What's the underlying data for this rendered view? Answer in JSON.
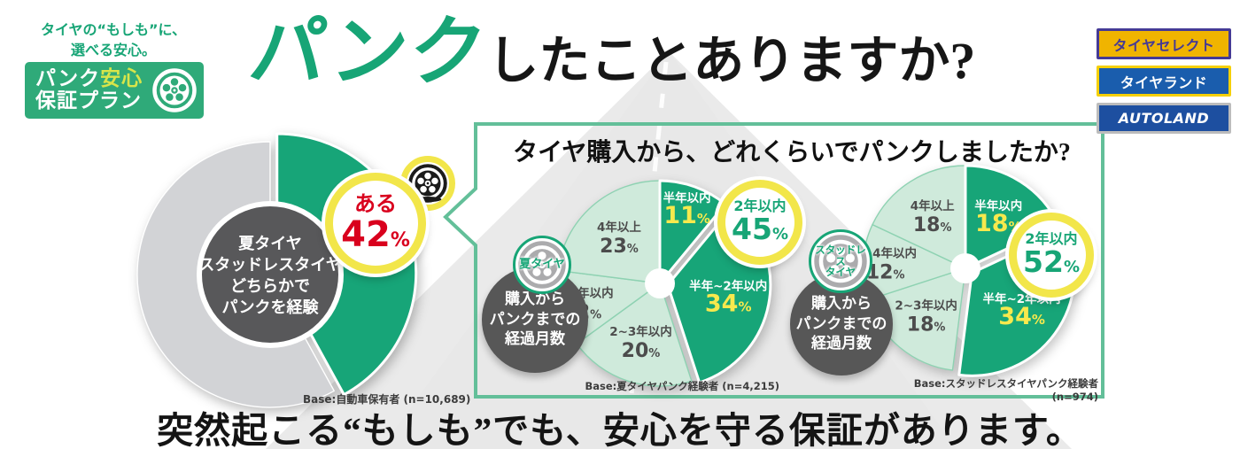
{
  "header": {
    "tagline": "タイヤの“もしも”に、\n選べる安心。",
    "logo": {
      "line1_white": "パンク",
      "line1_yellow": "安心",
      "line2": "保証プラン"
    },
    "title_accent": "パンク",
    "title_rest": "したことありますか?"
  },
  "brands": [
    {
      "name": "タイヤセレクト",
      "bg": "#f0b400",
      "text_color": "#453a96",
      "border_color": "#453a96",
      "italic": false
    },
    {
      "name": "タイヤランド",
      "bg": "#1a5dad",
      "text_color": "#ffffff",
      "border_color": "#f5d000",
      "italic": false
    },
    {
      "name": "AUTOLAND",
      "bg": "#1d4fa0",
      "text_color": "#ffffff",
      "border_color": "#bcbcbc",
      "italic": true
    }
  ],
  "question_box": {
    "title": "タイヤ購入から、どれくらいでパンクしましたか?"
  },
  "colors": {
    "accent_green": "#17a576",
    "light_green": "#cfeadb",
    "gray_ring": "#d2d3d6",
    "dark_circle": "#575757",
    "callout_yellow": "#f2e64a",
    "red": "#d9001d"
  },
  "chart_data": [
    {
      "type": "pie",
      "name": "puncture-experience-donut",
      "slices": [
        {
          "label": "ある",
          "value": 42,
          "color": "#17a578",
          "dark": true,
          "exploded": true
        },
        {
          "label": "",
          "value": 58,
          "color": "#d2d3d6"
        }
      ],
      "center_label": "夏タイヤ\nスタッドレスタイヤ\nどちらかで\nパンクを経験",
      "callout": {
        "label": "ある",
        "value": "42",
        "unit": "%"
      },
      "base_note": "Base:自動車保有者 (n=10,689)"
    },
    {
      "type": "pie",
      "name": "months-until-puncture-summer",
      "group": "夏タイヤ",
      "slices": [
        {
          "label": "半年以内",
          "value": 11,
          "color": "#17a578",
          "dark": true
        },
        {
          "label": "半年~2年以内",
          "value": 34,
          "color": "#17a578",
          "dark": true,
          "exploded": true
        },
        {
          "label": "2~3年以内",
          "value": 20,
          "color": "#cfeadb"
        },
        {
          "label": "3~4年以内",
          "value": 12,
          "color": "#cfeadb"
        },
        {
          "label": "4年以上",
          "value": 23,
          "color": "#cfeadb"
        }
      ],
      "callout": {
        "label": "2年以内",
        "value": "45",
        "unit": "%"
      },
      "side_badge": "夏タイヤ",
      "side_label": "購入から\nパンクまでの\n経過月数",
      "base_note": "Base:夏タイヤパンク経験者 (n=4,215)"
    },
    {
      "type": "pie",
      "name": "months-until-puncture-studless",
      "group": "スタッドレスタイヤ",
      "slices": [
        {
          "label": "半年以内",
          "value": 18,
          "color": "#17a578",
          "dark": true
        },
        {
          "label": "半年~2年以内",
          "value": 34,
          "color": "#17a578",
          "dark": true,
          "exploded": true
        },
        {
          "label": "2~3年以内",
          "value": 18,
          "color": "#cfeadb"
        },
        {
          "label": "3~4年以内",
          "value": 12,
          "color": "#cfeadb"
        },
        {
          "label": "4年以上",
          "value": 18,
          "color": "#cfeadb"
        }
      ],
      "callout": {
        "label": "2年以内",
        "value": "52",
        "unit": "%"
      },
      "side_badge": "スタッドレス\nタイヤ",
      "side_label": "購入から\nパンクまでの\n経過月数",
      "base_note": "Base:スタッドレスタイヤパンク経験者 (n=974)"
    }
  ],
  "footer": {
    "message": "突然起こる“もしも”でも、安心を守る保証があります。"
  }
}
